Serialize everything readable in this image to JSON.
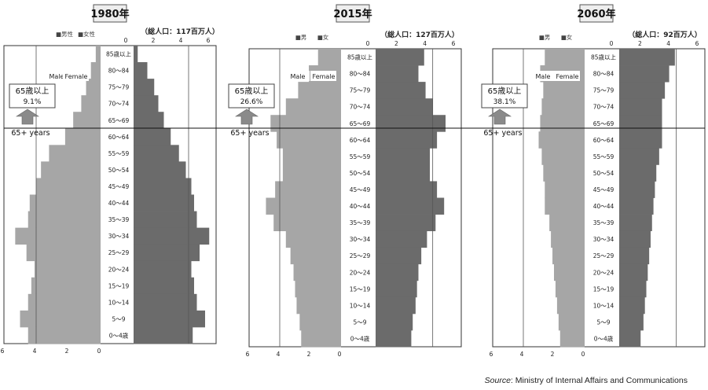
{
  "source": {
    "label": "Source",
    "text": ": Ministry of Internal Affairs and Communications"
  },
  "colors": {
    "male": "#a6a6a6",
    "female": "#6b6b6b",
    "frame": "#333333",
    "grid": "#555555",
    "box": "#eeeeee"
  },
  "chart_data": [
    {
      "type": "bar",
      "orientation": "population-pyramid",
      "title": "1980年",
      "total_label": "（総人口：117百万人）",
      "legend": [
        "■男性",
        "■女性"
      ],
      "male_label": "Male",
      "female_label": "Female",
      "callout": {
        "line1": "65歳以上",
        "line2": "9.1%",
        "en": "65+ years"
      },
      "axis_ticks_male": [
        "6",
        "4",
        "2",
        "0"
      ],
      "axis_ticks_female": [
        "0",
        "2",
        "4",
        "6"
      ],
      "xlim": [
        0,
        6
      ],
      "categories": [
        "85歳以上",
        "80～84",
        "75～79",
        "70～74",
        "65～69",
        "60～64",
        "55～59",
        "50～54",
        "45～49",
        "40～44",
        "35～39",
        "30～34",
        "25～29",
        "20～24",
        "15～19",
        "10～14",
        "5～9",
        "0～4歳"
      ],
      "male": [
        0.3,
        0.6,
        0.9,
        1.2,
        1.7,
        2.2,
        3.2,
        3.7,
        4.0,
        4.4,
        4.5,
        5.3,
        4.6,
        4.1,
        4.3,
        4.5,
        5.0,
        4.5
      ],
      "female": [
        0.3,
        1.0,
        1.5,
        1.8,
        2.2,
        2.7,
        3.3,
        3.8,
        4.2,
        4.4,
        4.6,
        5.5,
        4.8,
        4.2,
        4.4,
        4.6,
        5.2,
        4.3
      ]
    },
    {
      "type": "bar",
      "orientation": "population-pyramid",
      "title": "2015年",
      "total_label": "（総人口：127百万人）",
      "legend": [
        "■男",
        "■女"
      ],
      "male_label": "Male",
      "female_label": "Female",
      "callout": {
        "line1": "65歳以上",
        "line2": "26.6%",
        "en": "65+ years"
      },
      "axis_ticks_male": [
        "6",
        "4",
        "2",
        "0"
      ],
      "axis_ticks_female": [
        "0",
        "2",
        "4",
        "6"
      ],
      "xlim": [
        0,
        6
      ],
      "categories": [
        "85歳以上",
        "80～84",
        "75～79",
        "70～74",
        "65～69",
        "60～64",
        "55～59",
        "50～54",
        "45～49",
        "40～44",
        "35～39",
        "30～34",
        "25～29",
        "20～24",
        "15～19",
        "10～14",
        "5～9",
        "0～4歳"
      ],
      "male": [
        1.5,
        2.1,
        2.8,
        3.6,
        4.6,
        4.2,
        3.8,
        3.8,
        4.3,
        4.9,
        4.4,
        3.6,
        3.3,
        3.1,
        3.0,
        2.9,
        2.7,
        2.6
      ],
      "female": [
        3.4,
        3.0,
        3.5,
        4.0,
        4.9,
        4.3,
        3.8,
        3.8,
        4.3,
        4.8,
        4.2,
        3.6,
        3.2,
        3.0,
        2.9,
        2.8,
        2.6,
        2.5
      ]
    },
    {
      "type": "bar",
      "orientation": "population-pyramid",
      "title": "2060年",
      "total_label": "（総人口：92百万人）",
      "legend": [
        "■男",
        "■女"
      ],
      "male_label": "Male",
      "female_label": "Female",
      "callout": {
        "line1": "65歳以上",
        "line2": "38.1%",
        "en": "65+ years"
      },
      "axis_ticks_male": [
        "6",
        "4",
        "2",
        "0"
      ],
      "axis_ticks_female": [
        "0",
        "2",
        "4",
        "6"
      ],
      "xlim": [
        0,
        6
      ],
      "categories": [
        "85歳以上",
        "80～84",
        "75～79",
        "70～74",
        "65～69",
        "60～64",
        "55～59",
        "50～54",
        "45～49",
        "40～44",
        "35～39",
        "30～34",
        "25～29",
        "20～24",
        "15～19",
        "10～14",
        "5～9",
        "0～4歳"
      ],
      "male": [
        2.6,
        2.9,
        2.7,
        2.8,
        2.9,
        3.0,
        2.8,
        2.7,
        2.6,
        2.6,
        2.3,
        2.2,
        2.1,
        2.0,
        1.9,
        1.8,
        1.7,
        1.6
      ],
      "female": [
        3.9,
        3.5,
        3.2,
        3.0,
        3.0,
        3.0,
        2.8,
        2.6,
        2.5,
        2.4,
        2.3,
        2.2,
        2.1,
        2.0,
        1.9,
        1.8,
        1.7,
        1.5
      ]
    }
  ]
}
